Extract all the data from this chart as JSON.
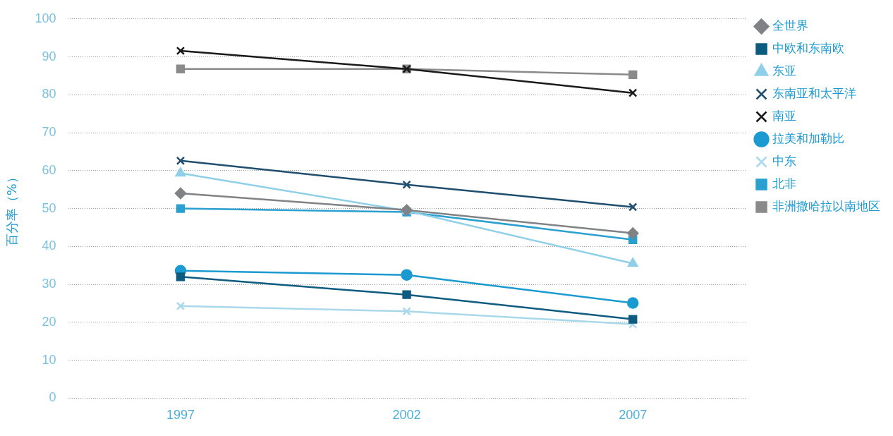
{
  "chart_data": {
    "type": "line",
    "ylabel": "百分率（%）",
    "categories": [
      "1997",
      "2002",
      "2007"
    ],
    "ylim": [
      0,
      100
    ],
    "yticks": [
      0,
      10,
      20,
      30,
      40,
      50,
      60,
      70,
      80,
      90,
      100
    ],
    "grid": "y",
    "legend": "right",
    "line_style": "solid",
    "series": [
      {
        "name": "全世界",
        "color": "#808285",
        "marker": "diamond",
        "values": [
          54,
          49.6,
          43.5
        ]
      },
      {
        "name": "中欧和东南欧",
        "color": "#0d5c80",
        "marker": "square",
        "values": [
          32,
          27.3,
          20.8
        ]
      },
      {
        "name": "东亚",
        "color": "#8fd0e8",
        "marker": "triangle",
        "values": [
          59.3,
          49.4,
          35.5
        ]
      },
      {
        "name": "东南亚和太平洋",
        "color": "#1f4e6e",
        "marker": "cross",
        "values": [
          62.6,
          56.3,
          50.4
        ]
      },
      {
        "name": "南亚",
        "color": "#1a1a1a",
        "marker": "cross",
        "values": [
          91.6,
          86.8,
          80.5
        ]
      },
      {
        "name": "拉美和加勒比",
        "color": "#1a9ad0",
        "marker": "circle",
        "values": [
          33.6,
          32.5,
          25.1
        ]
      },
      {
        "name": "中东",
        "color": "#a9d8ea",
        "marker": "cross",
        "values": [
          24.3,
          22.9,
          19.5
        ]
      },
      {
        "name": "北非",
        "color": "#2a9fd0",
        "marker": "square",
        "values": [
          50,
          49.1,
          41.8
        ]
      },
      {
        "name": "非洲撒哈拉以南地区",
        "color": "#8a8a8a",
        "marker": "square",
        "values": [
          86.8,
          86.8,
          85.3
        ]
      }
    ]
  }
}
